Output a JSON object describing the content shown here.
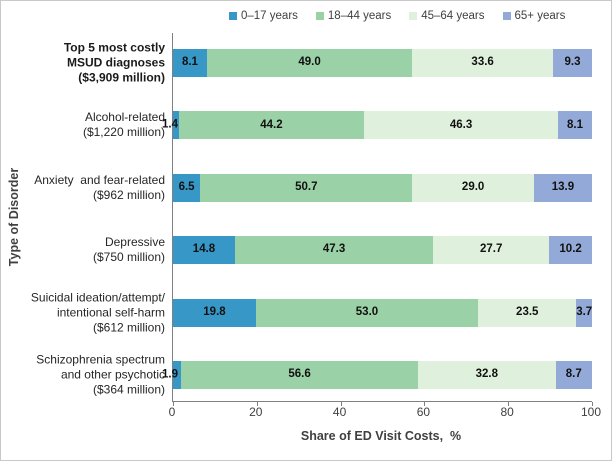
{
  "chart_data": {
    "type": "bar",
    "orientation": "horizontal",
    "stacked": true,
    "xlabel": "Share of ED Visit Costs,  %",
    "ylabel": "Type of Disorder",
    "xlim": [
      0,
      100
    ],
    "x_ticks": [
      0,
      20,
      40,
      60,
      80,
      100
    ],
    "legend_position": "top",
    "grid": false,
    "series": [
      {
        "name": "0–17 years",
        "color": "#3797C6"
      },
      {
        "name": "18–44 years",
        "color": "#9BD1A6"
      },
      {
        "name": "45–64 years",
        "color": "#DFF1DC"
      },
      {
        "name": "65+ years",
        "color": "#93A9D8"
      }
    ],
    "categories": [
      {
        "lines": [
          "Top 5 most costly",
          "MSUD diagnoses",
          "($3,909 million)"
        ],
        "bold": true,
        "values": [
          8.1,
          49.0,
          33.6,
          9.3
        ]
      },
      {
        "lines": [
          "Alcohol-related",
          "($1,220 million)"
        ],
        "bold": false,
        "values": [
          1.4,
          44.2,
          46.3,
          8.1
        ]
      },
      {
        "lines": [
          "Anxiety  and fear-related",
          "($962 million)"
        ],
        "bold": false,
        "values": [
          6.5,
          50.7,
          29.0,
          13.9
        ]
      },
      {
        "lines": [
          "Depressive",
          "($750 million)"
        ],
        "bold": false,
        "values": [
          14.8,
          47.3,
          27.7,
          10.2
        ]
      },
      {
        "lines": [
          "Suicidal ideation/attempt/",
          "intentional self-harm",
          "($612 million)"
        ],
        "bold": false,
        "values": [
          19.8,
          53.0,
          23.5,
          3.7
        ]
      },
      {
        "lines": [
          "Schizophrenia spectrum",
          "and other psychotic",
          "($364 million)"
        ],
        "bold": false,
        "values": [
          1.9,
          56.6,
          32.8,
          8.7
        ]
      }
    ],
    "axis_color": "#808080",
    "data_label_color": "#111111",
    "small_segment_label_threshold": 2.5
  }
}
